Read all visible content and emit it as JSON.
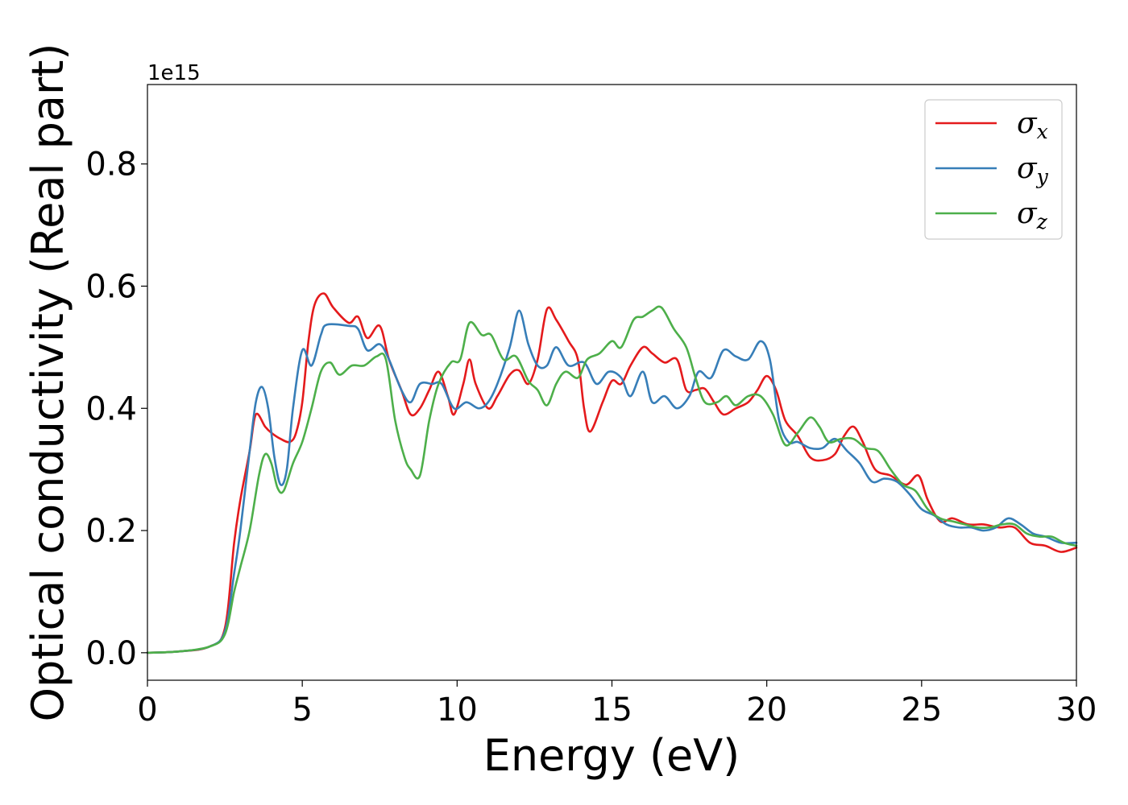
{
  "chart_data": {
    "type": "line",
    "xlabel": "Energy (eV)",
    "ylabel": "Optical conductivity (Real part)",
    "y_offset_label": "1e15",
    "xlim": [
      0,
      30
    ],
    "ylim": [
      -0.045,
      0.93
    ],
    "x_ticks": [
      0,
      5,
      10,
      15,
      20,
      25,
      30
    ],
    "y_ticks": [
      0.0,
      0.2,
      0.4,
      0.6,
      0.8
    ],
    "x_tick_labels": [
      "0",
      "5",
      "10",
      "15",
      "20",
      "25",
      "30"
    ],
    "y_tick_labels": [
      "0.0",
      "0.2",
      "0.4",
      "0.6",
      "0.8"
    ],
    "grid": false,
    "legend_position": "top-right",
    "series": [
      {
        "name": "σx",
        "symbol": "σ",
        "subscript": "x",
        "color": "#e41a1c",
        "points": [
          [
            0,
            0
          ],
          [
            1,
            0.002
          ],
          [
            2,
            0.01
          ],
          [
            2.5,
            0.04
          ],
          [
            2.8,
            0.18
          ],
          [
            3,
            0.25
          ],
          [
            3.3,
            0.33
          ],
          [
            3.5,
            0.39
          ],
          [
            3.8,
            0.37
          ],
          [
            4,
            0.36
          ],
          [
            4.3,
            0.35
          ],
          [
            4.6,
            0.345
          ],
          [
            4.8,
            0.36
          ],
          [
            5,
            0.41
          ],
          [
            5.2,
            0.51
          ],
          [
            5.4,
            0.57
          ],
          [
            5.7,
            0.588
          ],
          [
            6,
            0.565
          ],
          [
            6.5,
            0.54
          ],
          [
            6.8,
            0.55
          ],
          [
            7.1,
            0.515
          ],
          [
            7.5,
            0.535
          ],
          [
            7.8,
            0.48
          ],
          [
            8.2,
            0.43
          ],
          [
            8.5,
            0.39
          ],
          [
            8.8,
            0.4
          ],
          [
            9.1,
            0.43
          ],
          [
            9.4,
            0.46
          ],
          [
            9.7,
            0.42
          ],
          [
            9.9,
            0.39
          ],
          [
            10.2,
            0.44
          ],
          [
            10.4,
            0.48
          ],
          [
            10.6,
            0.44
          ],
          [
            11,
            0.4
          ],
          [
            11.3,
            0.42
          ],
          [
            11.7,
            0.455
          ],
          [
            12,
            0.462
          ],
          [
            12.3,
            0.44
          ],
          [
            12.6,
            0.48
          ],
          [
            12.9,
            0.562
          ],
          [
            13.2,
            0.545
          ],
          [
            13.6,
            0.51
          ],
          [
            13.9,
            0.48
          ],
          [
            14.1,
            0.4
          ],
          [
            14.3,
            0.362
          ],
          [
            14.7,
            0.41
          ],
          [
            15,
            0.445
          ],
          [
            15.3,
            0.44
          ],
          [
            15.6,
            0.47
          ],
          [
            16,
            0.5
          ],
          [
            16.3,
            0.49
          ],
          [
            16.7,
            0.475
          ],
          [
            17.1,
            0.48
          ],
          [
            17.4,
            0.43
          ],
          [
            17.7,
            0.43
          ],
          [
            18,
            0.432
          ],
          [
            18.3,
            0.41
          ],
          [
            18.6,
            0.39
          ],
          [
            19,
            0.4
          ],
          [
            19.4,
            0.41
          ],
          [
            19.7,
            0.43
          ],
          [
            20,
            0.453
          ],
          [
            20.3,
            0.43
          ],
          [
            20.6,
            0.38
          ],
          [
            21,
            0.355
          ],
          [
            21.4,
            0.32
          ],
          [
            21.8,
            0.315
          ],
          [
            22.2,
            0.325
          ],
          [
            22.5,
            0.355
          ],
          [
            22.8,
            0.37
          ],
          [
            23.1,
            0.345
          ],
          [
            23.5,
            0.3
          ],
          [
            24,
            0.29
          ],
          [
            24.5,
            0.275
          ],
          [
            24.9,
            0.29
          ],
          [
            25.2,
            0.25
          ],
          [
            25.6,
            0.215
          ],
          [
            26,
            0.22
          ],
          [
            26.5,
            0.21
          ],
          [
            27,
            0.21
          ],
          [
            27.5,
            0.205
          ],
          [
            28,
            0.205
          ],
          [
            28.5,
            0.18
          ],
          [
            29,
            0.175
          ],
          [
            29.5,
            0.165
          ],
          [
            30,
            0.172
          ]
        ]
      },
      {
        "name": "σy",
        "symbol": "σ",
        "subscript": "y",
        "color": "#377eb8",
        "points": [
          [
            0,
            0
          ],
          [
            1,
            0.002
          ],
          [
            2,
            0.01
          ],
          [
            2.5,
            0.035
          ],
          [
            2.8,
            0.13
          ],
          [
            3,
            0.2
          ],
          [
            3.3,
            0.33
          ],
          [
            3.5,
            0.41
          ],
          [
            3.7,
            0.435
          ],
          [
            3.9,
            0.4
          ],
          [
            4.1,
            0.32
          ],
          [
            4.3,
            0.275
          ],
          [
            4.5,
            0.3
          ],
          [
            4.7,
            0.4
          ],
          [
            5,
            0.495
          ],
          [
            5.3,
            0.47
          ],
          [
            5.6,
            0.52
          ],
          [
            5.8,
            0.537
          ],
          [
            6.5,
            0.535
          ],
          [
            6.8,
            0.53
          ],
          [
            7.1,
            0.495
          ],
          [
            7.5,
            0.505
          ],
          [
            7.8,
            0.48
          ],
          [
            8.2,
            0.43
          ],
          [
            8.5,
            0.41
          ],
          [
            8.8,
            0.44
          ],
          [
            9.2,
            0.44
          ],
          [
            9.5,
            0.44
          ],
          [
            9.9,
            0.4
          ],
          [
            10.3,
            0.41
          ],
          [
            10.7,
            0.4
          ],
          [
            11,
            0.41
          ],
          [
            11.3,
            0.44
          ],
          [
            11.7,
            0.5
          ],
          [
            12,
            0.56
          ],
          [
            12.3,
            0.505
          ],
          [
            12.6,
            0.47
          ],
          [
            12.9,
            0.47
          ],
          [
            13.2,
            0.5
          ],
          [
            13.6,
            0.47
          ],
          [
            14.1,
            0.475
          ],
          [
            14.5,
            0.44
          ],
          [
            14.9,
            0.46
          ],
          [
            15.3,
            0.45
          ],
          [
            15.6,
            0.42
          ],
          [
            16,
            0.46
          ],
          [
            16.3,
            0.41
          ],
          [
            16.7,
            0.42
          ],
          [
            17.1,
            0.4
          ],
          [
            17.5,
            0.42
          ],
          [
            17.8,
            0.46
          ],
          [
            18.2,
            0.45
          ],
          [
            18.6,
            0.495
          ],
          [
            19,
            0.485
          ],
          [
            19.4,
            0.48
          ],
          [
            19.8,
            0.51
          ],
          [
            20.1,
            0.48
          ],
          [
            20.4,
            0.38
          ],
          [
            20.7,
            0.345
          ],
          [
            21,
            0.345
          ],
          [
            21.4,
            0.335
          ],
          [
            21.8,
            0.335
          ],
          [
            22.2,
            0.35
          ],
          [
            22.6,
            0.33
          ],
          [
            23,
            0.31
          ],
          [
            23.4,
            0.28
          ],
          [
            23.8,
            0.285
          ],
          [
            24.2,
            0.28
          ],
          [
            24.6,
            0.26
          ],
          [
            25,
            0.235
          ],
          [
            25.4,
            0.225
          ],
          [
            25.8,
            0.21
          ],
          [
            26.2,
            0.205
          ],
          [
            26.6,
            0.205
          ],
          [
            27,
            0.2
          ],
          [
            27.4,
            0.205
          ],
          [
            27.8,
            0.22
          ],
          [
            28.2,
            0.21
          ],
          [
            28.6,
            0.195
          ],
          [
            29,
            0.19
          ],
          [
            29.5,
            0.18
          ],
          [
            30,
            0.18
          ]
        ]
      },
      {
        "name": "σz",
        "symbol": "σ",
        "subscript": "z",
        "color": "#4daf4a",
        "points": [
          [
            0,
            0
          ],
          [
            1,
            0.002
          ],
          [
            2,
            0.01
          ],
          [
            2.5,
            0.03
          ],
          [
            2.8,
            0.1
          ],
          [
            3,
            0.14
          ],
          [
            3.3,
            0.2
          ],
          [
            3.6,
            0.29
          ],
          [
            3.8,
            0.325
          ],
          [
            4,
            0.31
          ],
          [
            4.2,
            0.27
          ],
          [
            4.4,
            0.265
          ],
          [
            4.7,
            0.31
          ],
          [
            5,
            0.345
          ],
          [
            5.3,
            0.4
          ],
          [
            5.6,
            0.46
          ],
          [
            5.9,
            0.475
          ],
          [
            6.2,
            0.455
          ],
          [
            6.6,
            0.47
          ],
          [
            7,
            0.47
          ],
          [
            7.4,
            0.485
          ],
          [
            7.7,
            0.48
          ],
          [
            8,
            0.38
          ],
          [
            8.3,
            0.32
          ],
          [
            8.5,
            0.3
          ],
          [
            8.8,
            0.29
          ],
          [
            9.1,
            0.38
          ],
          [
            9.4,
            0.44
          ],
          [
            9.8,
            0.475
          ],
          [
            10.1,
            0.48
          ],
          [
            10.4,
            0.54
          ],
          [
            10.8,
            0.52
          ],
          [
            11.1,
            0.52
          ],
          [
            11.5,
            0.48
          ],
          [
            11.9,
            0.485
          ],
          [
            12.3,
            0.445
          ],
          [
            12.6,
            0.43
          ],
          [
            12.9,
            0.405
          ],
          [
            13.2,
            0.44
          ],
          [
            13.5,
            0.46
          ],
          [
            13.9,
            0.45
          ],
          [
            14.2,
            0.48
          ],
          [
            14.6,
            0.49
          ],
          [
            15,
            0.51
          ],
          [
            15.3,
            0.5
          ],
          [
            15.7,
            0.545
          ],
          [
            16,
            0.55
          ],
          [
            16.3,
            0.56
          ],
          [
            16.6,
            0.565
          ],
          [
            17,
            0.53
          ],
          [
            17.4,
            0.5
          ],
          [
            17.7,
            0.45
          ],
          [
            18,
            0.41
          ],
          [
            18.4,
            0.41
          ],
          [
            18.7,
            0.42
          ],
          [
            19,
            0.405
          ],
          [
            19.4,
            0.42
          ],
          [
            19.8,
            0.42
          ],
          [
            20.2,
            0.39
          ],
          [
            20.6,
            0.34
          ],
          [
            21,
            0.36
          ],
          [
            21.4,
            0.385
          ],
          [
            21.7,
            0.37
          ],
          [
            22,
            0.345
          ],
          [
            22.4,
            0.35
          ],
          [
            22.8,
            0.35
          ],
          [
            23.2,
            0.335
          ],
          [
            23.6,
            0.33
          ],
          [
            24,
            0.3
          ],
          [
            24.4,
            0.275
          ],
          [
            24.8,
            0.265
          ],
          [
            25.2,
            0.235
          ],
          [
            25.6,
            0.22
          ],
          [
            26,
            0.215
          ],
          [
            26.4,
            0.21
          ],
          [
            26.8,
            0.205
          ],
          [
            27.2,
            0.205
          ],
          [
            27.6,
            0.21
          ],
          [
            28,
            0.21
          ],
          [
            28.4,
            0.195
          ],
          [
            28.8,
            0.19
          ],
          [
            29.2,
            0.19
          ],
          [
            29.6,
            0.18
          ],
          [
            30,
            0.175
          ]
        ]
      }
    ]
  }
}
